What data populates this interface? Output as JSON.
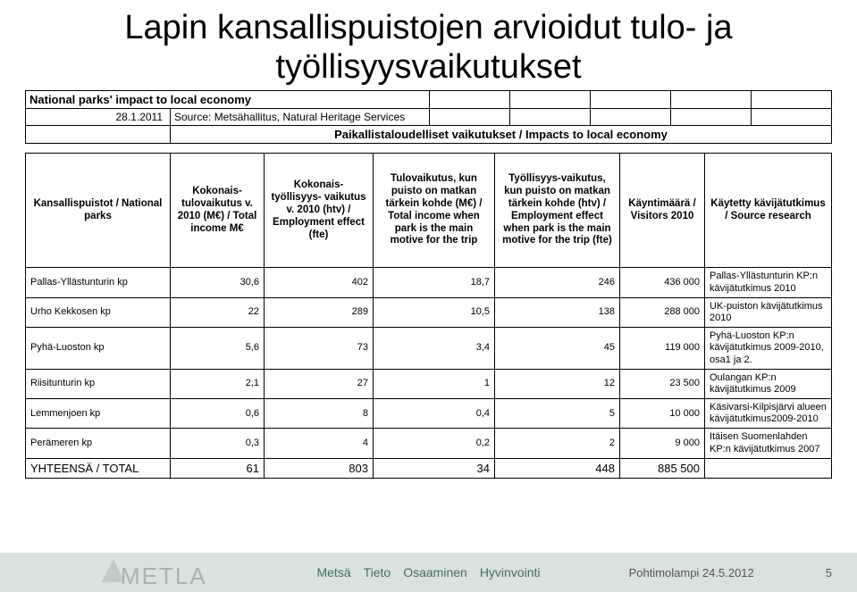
{
  "title": "Lapin kansallispuistojen arvioidut tulo- ja työllisyysvaikutukset",
  "subtitle_table": {
    "row1": "National parks' impact to local economy",
    "date": "28.1.2011",
    "source": "Source: Metsähallitus, Natural Heritage Services",
    "impacts_header": "Paikallistaloudelliset vaikutukset / Impacts to local economy"
  },
  "columns": [
    "Kansallispuistot / National parks",
    "Kokonais-tulovaikutus v. 2010 (M€) / Total income M€",
    "Kokonais-työllisyys- vaikutus v. 2010 (htv) / Employment effect (fte)",
    "Tulovaikutus, kun puisto on matkan tärkein kohde (M€) / Total income when park is the main motive for the trip",
    "Työllisyys-vaikutus, kun puisto on matkan tärkein kohde (htv) / Employment effect when park is the main motive for the trip (fte)",
    "Käyntimäärä / Visitors 2010",
    "Käytetty kävijätutkimus / Source research"
  ],
  "rows": [
    {
      "park": "Pallas-Yllästunturin kp",
      "v": [
        "30,6",
        "402",
        "18,7",
        "246",
        "436 000"
      ],
      "src": "Pallas-Yllästunturin KP:n kävijätutkimus 2010"
    },
    {
      "park": "Urho Kekkosen kp",
      "v": [
        "22",
        "289",
        "10,5",
        "138",
        "288 000"
      ],
      "src": "UK-puiston kävijätutkimus 2010"
    },
    {
      "park": "Pyhä-Luoston kp",
      "v": [
        "5,6",
        "73",
        "3,4",
        "45",
        "119 000"
      ],
      "src": "Pyhä-Luoston KP:n kävijätutkimus 2009-2010, osa1 ja 2."
    },
    {
      "park": "Riisitunturin kp",
      "v": [
        "2,1",
        "27",
        "1",
        "12",
        "23 500"
      ],
      "src": "Oulangan KP:n kävijätutkimus 2009"
    },
    {
      "park": "Lemmenjoen kp",
      "v": [
        "0,6",
        "8",
        "0,4",
        "5",
        "10 000"
      ],
      "src": "Käsivarsi-Kilpisjärvi alueen kävijätutkimus2009-2010"
    },
    {
      "park": "Perämeren kp",
      "v": [
        "0,3",
        "4",
        "0,2",
        "2",
        "9 000"
      ],
      "src": "Itäisen Suomenlahden KP:n kävijätutkimus 2007"
    }
  ],
  "total": {
    "label": "YHTEENSÄ / TOTAL",
    "v": [
      "61",
      "803",
      "34",
      "448",
      "885 500"
    ],
    "src": ""
  },
  "footer": {
    "date_left": "Pohtimolampi 24.5.2012",
    "logo_text": "METLA",
    "words": [
      "Metsä",
      "Tieto",
      "Osaaminen",
      "Hyvinvointi"
    ],
    "date_right": "Pohtimolampi 24.5.2012",
    "page": "5"
  },
  "colors": {
    "border": "#000000",
    "footer_bg": "#d9e2e1",
    "footer_text": "#4a6b5f",
    "logo_gray": "#6b7c78"
  }
}
